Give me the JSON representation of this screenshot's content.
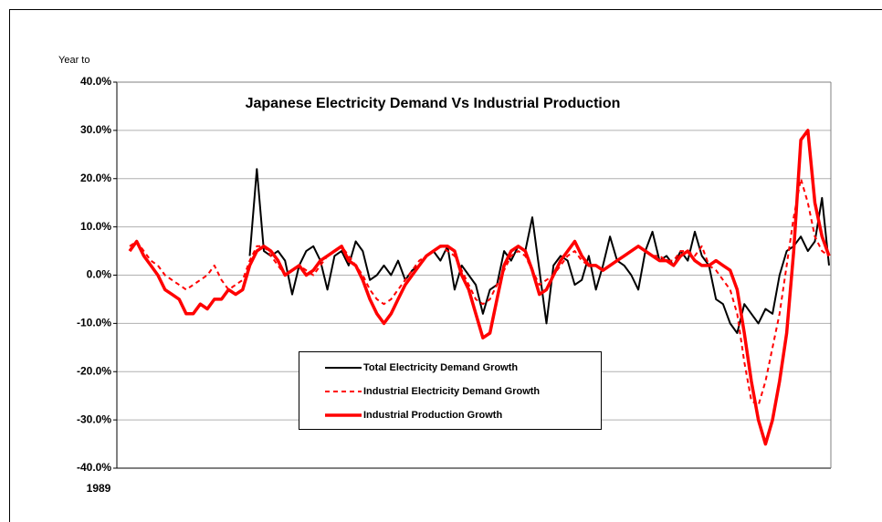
{
  "chart_data": {
    "type": "line",
    "title": "Japanese Electricity Demand Vs Industrial Production",
    "y_label": "Year to",
    "categories": [
      "1989",
      null,
      null,
      null,
      null,
      null,
      null,
      null,
      null,
      null,
      null,
      null,
      null,
      null,
      null,
      null,
      null,
      null,
      null,
      null,
      null,
      null,
      null,
      null,
      null,
      null,
      null,
      null,
      null,
      null,
      null,
      null,
      null,
      null,
      null,
      null,
      null,
      null,
      null,
      null,
      null,
      null,
      null,
      null,
      null,
      null,
      null,
      null,
      null,
      null,
      null,
      null,
      null,
      null,
      null,
      null,
      null,
      null,
      null,
      null,
      null,
      null,
      null,
      null,
      null,
      null,
      null,
      null,
      null,
      null,
      null,
      null,
      null,
      null,
      null,
      null,
      null,
      null,
      null,
      null,
      null,
      null,
      null,
      null,
      null,
      null,
      null,
      null,
      null,
      null,
      null,
      null,
      null,
      null,
      null,
      null,
      null,
      null,
      null,
      null
    ],
    "ylim": [
      -40,
      40
    ],
    "yticks": [
      {
        "value": -40,
        "label": "-40.0%"
      },
      {
        "value": -30,
        "label": "-30.0%"
      },
      {
        "value": -20,
        "label": "-20.0%"
      },
      {
        "value": -10,
        "label": "-10.0%"
      },
      {
        "value": 0,
        "label": "0.0%"
      },
      {
        "value": 10,
        "label": "10.0%"
      },
      {
        "value": 20,
        "label": "20.0%"
      },
      {
        "value": 30,
        "label": "30.0%"
      },
      {
        "value": 40,
        "label": "40.0%"
      }
    ],
    "grid": true,
    "series": [
      {
        "name": "Total Electricity Demand Growth",
        "color": "#000000",
        "style": "solid",
        "values": [
          null,
          null,
          null,
          null,
          null,
          null,
          null,
          null,
          null,
          null,
          null,
          null,
          null,
          null,
          null,
          null,
          null,
          4,
          22,
          5,
          4,
          5,
          3,
          -4,
          2,
          5,
          6,
          3,
          -3,
          4,
          5,
          2,
          7,
          5,
          -1,
          0,
          2,
          0,
          3,
          -1,
          1,
          2,
          4,
          5,
          3,
          6,
          -3,
          2,
          0,
          -2,
          -8,
          -3,
          -2,
          5,
          3,
          6,
          5,
          12,
          1,
          -10,
          2,
          4,
          3,
          -2,
          -1,
          4,
          -3,
          2,
          8,
          3,
          2,
          0,
          -3,
          5,
          9,
          3,
          4,
          2,
          5,
          3,
          9,
          4,
          2,
          -5,
          -6,
          -10,
          -12,
          -6,
          -8,
          -10,
          -7,
          -8,
          0,
          5,
          6,
          8,
          5,
          7,
          16,
          2
        ]
      },
      {
        "name": "Industrial Electricity Demand Growth",
        "color": "#ff0000",
        "style": "dashed",
        "values": [
          6,
          7,
          5,
          3,
          2,
          0,
          -1,
          -2,
          -3,
          -2,
          -1,
          0,
          2,
          -1,
          -3,
          -2,
          -1,
          3,
          6,
          6,
          4,
          2,
          0,
          1,
          2,
          1,
          0,
          2,
          4,
          5,
          6,
          4,
          2,
          0,
          -3,
          -5,
          -6,
          -5,
          -3,
          -1,
          1,
          3,
          4,
          5,
          6,
          5,
          4,
          1,
          -2,
          -5,
          -6,
          -5,
          -2,
          1,
          4,
          5,
          4,
          1,
          -2,
          -1,
          0,
          2,
          4,
          5,
          3,
          2,
          2,
          1,
          2,
          3,
          4,
          5,
          6,
          5,
          4,
          4,
          3,
          3,
          5,
          5,
          4,
          6,
          2,
          1,
          -1,
          -3,
          -8,
          -18,
          -26,
          -27,
          -22,
          -15,
          -8,
          2,
          12,
          20,
          15,
          8,
          5,
          4
        ]
      },
      {
        "name": "Industrial Production Growth",
        "color": "#ff0000",
        "style": "thick",
        "values": [
          5,
          7,
          4,
          2,
          0,
          -3,
          -4,
          -5,
          -8,
          -8,
          -6,
          -7,
          -5,
          -5,
          -3,
          -4,
          -3,
          2,
          5,
          6,
          5,
          3,
          0,
          1,
          2,
          0,
          1,
          3,
          4,
          5,
          6,
          3,
          2,
          -1,
          -5,
          -8,
          -10,
          -8,
          -5,
          -2,
          0,
          2,
          4,
          5,
          6,
          6,
          5,
          0,
          -3,
          -8,
          -13,
          -12,
          -5,
          2,
          5,
          6,
          5,
          1,
          -4,
          -3,
          0,
          3,
          5,
          7,
          4,
          2,
          2,
          1,
          2,
          3,
          4,
          5,
          6,
          5,
          4,
          3,
          3,
          2,
          4,
          5,
          3,
          2,
          2,
          3,
          2,
          1,
          -3,
          -12,
          -22,
          -30,
          -35,
          -30,
          -22,
          -12,
          5,
          28,
          30,
          15,
          8,
          4
        ]
      }
    ]
  }
}
